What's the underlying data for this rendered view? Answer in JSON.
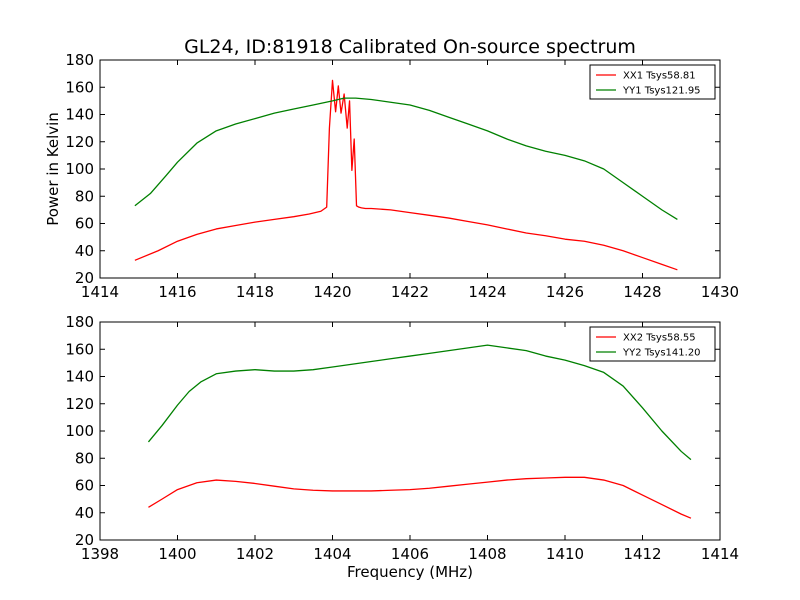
{
  "chart_data": [
    {
      "type": "line",
      "title": "GL24, ID:81918 Calibrated On-source spectrum",
      "xlabel": "",
      "ylabel": "Power in Kelvin",
      "xlim": [
        1414,
        1430
      ],
      "ylim": [
        20,
        180
      ],
      "xticks": [
        1414,
        1416,
        1418,
        1420,
        1422,
        1424,
        1426,
        1428,
        1430
      ],
      "yticks": [
        20,
        40,
        60,
        80,
        100,
        120,
        140,
        160,
        180
      ],
      "legend_position": "top-right",
      "series": [
        {
          "name": "XX1 Tsys58.81",
          "color": "#ff0000",
          "x": [
            1414.9,
            1415.5,
            1416.0,
            1416.5,
            1417.0,
            1417.5,
            1418.0,
            1418.5,
            1419.0,
            1419.4,
            1419.7,
            1419.85,
            1419.92,
            1420.0,
            1420.08,
            1420.15,
            1420.22,
            1420.3,
            1420.38,
            1420.44,
            1420.5,
            1420.56,
            1420.62,
            1420.68,
            1420.75,
            1420.85,
            1421.0,
            1421.5,
            1422.0,
            1422.5,
            1423.0,
            1423.5,
            1424.0,
            1424.5,
            1425.0,
            1425.5,
            1426.0,
            1426.5,
            1427.0,
            1427.5,
            1428.0,
            1428.5,
            1428.9
          ],
          "y": [
            33,
            40,
            47,
            52,
            56,
            58.5,
            61,
            63,
            65,
            67,
            69,
            72,
            130,
            165,
            142,
            161,
            141,
            155,
            130,
            150,
            99,
            122,
            73,
            72,
            71.5,
            71,
            71,
            70,
            68,
            66,
            64,
            61.5,
            59,
            56,
            53,
            51,
            48.5,
            47,
            44,
            40,
            35,
            30,
            26
          ]
        },
        {
          "name": "YY1 Tsys121.95",
          "color": "#008000",
          "x": [
            1414.9,
            1415.3,
            1415.7,
            1416.0,
            1416.5,
            1417.0,
            1417.5,
            1418.0,
            1418.5,
            1419.0,
            1419.5,
            1420.0,
            1420.3,
            1420.6,
            1421.0,
            1421.5,
            1422.0,
            1422.5,
            1423.0,
            1423.5,
            1424.0,
            1424.5,
            1425.0,
            1425.5,
            1426.0,
            1426.5,
            1427.0,
            1427.5,
            1428.0,
            1428.5,
            1428.9
          ],
          "y": [
            73,
            82,
            95,
            105,
            119,
            128,
            133,
            137,
            141,
            144,
            147,
            150,
            152,
            152,
            151,
            149,
            147,
            143,
            138,
            133,
            128,
            122,
            117,
            113,
            110,
            106,
            100,
            90,
            80,
            70,
            63
          ]
        }
      ]
    },
    {
      "type": "line",
      "title": "",
      "xlabel": "Frequency (MHz)",
      "ylabel": "",
      "xlim": [
        1398,
        1414
      ],
      "ylim": [
        20,
        180
      ],
      "xticks": [
        1398,
        1400,
        1402,
        1404,
        1406,
        1408,
        1410,
        1412,
        1414
      ],
      "yticks": [
        20,
        40,
        60,
        80,
        100,
        120,
        140,
        160,
        180
      ],
      "legend_position": "top-right",
      "series": [
        {
          "name": "XX2 Tsys58.55",
          "color": "#ff0000",
          "x": [
            1399.25,
            1399.6,
            1400.0,
            1400.5,
            1401.0,
            1401.5,
            1402.0,
            1402.5,
            1403.0,
            1403.5,
            1404.0,
            1404.5,
            1405.0,
            1405.5,
            1406.0,
            1406.5,
            1407.0,
            1407.5,
            1408.0,
            1408.5,
            1409.0,
            1409.5,
            1410.0,
            1410.5,
            1411.0,
            1411.5,
            1412.0,
            1412.5,
            1413.0,
            1413.25
          ],
          "y": [
            44,
            50,
            57,
            62,
            64,
            63,
            61.5,
            59.5,
            57.5,
            56.5,
            56,
            56,
            56,
            56.5,
            57,
            58,
            59.5,
            61,
            62.5,
            64,
            65,
            65.5,
            66,
            66,
            64,
            60,
            53,
            46,
            39,
            36
          ]
        },
        {
          "name": "YY2 Tsys141.20",
          "color": "#008000",
          "x": [
            1399.25,
            1399.6,
            1400.0,
            1400.3,
            1400.6,
            1401.0,
            1401.5,
            1402.0,
            1402.5,
            1403.0,
            1403.5,
            1404.0,
            1404.5,
            1405.0,
            1405.5,
            1406.0,
            1406.5,
            1407.0,
            1407.5,
            1408.0,
            1408.5,
            1409.0,
            1409.5,
            1410.0,
            1410.5,
            1411.0,
            1411.5,
            1412.0,
            1412.5,
            1413.0,
            1413.25
          ],
          "y": [
            92,
            104,
            119,
            129,
            136,
            142,
            144,
            145,
            144,
            144,
            145,
            147,
            149,
            151,
            153,
            155,
            157,
            159,
            161,
            163,
            161,
            159,
            155,
            152,
            148,
            143,
            133,
            117,
            100,
            85,
            79
          ]
        }
      ]
    }
  ]
}
